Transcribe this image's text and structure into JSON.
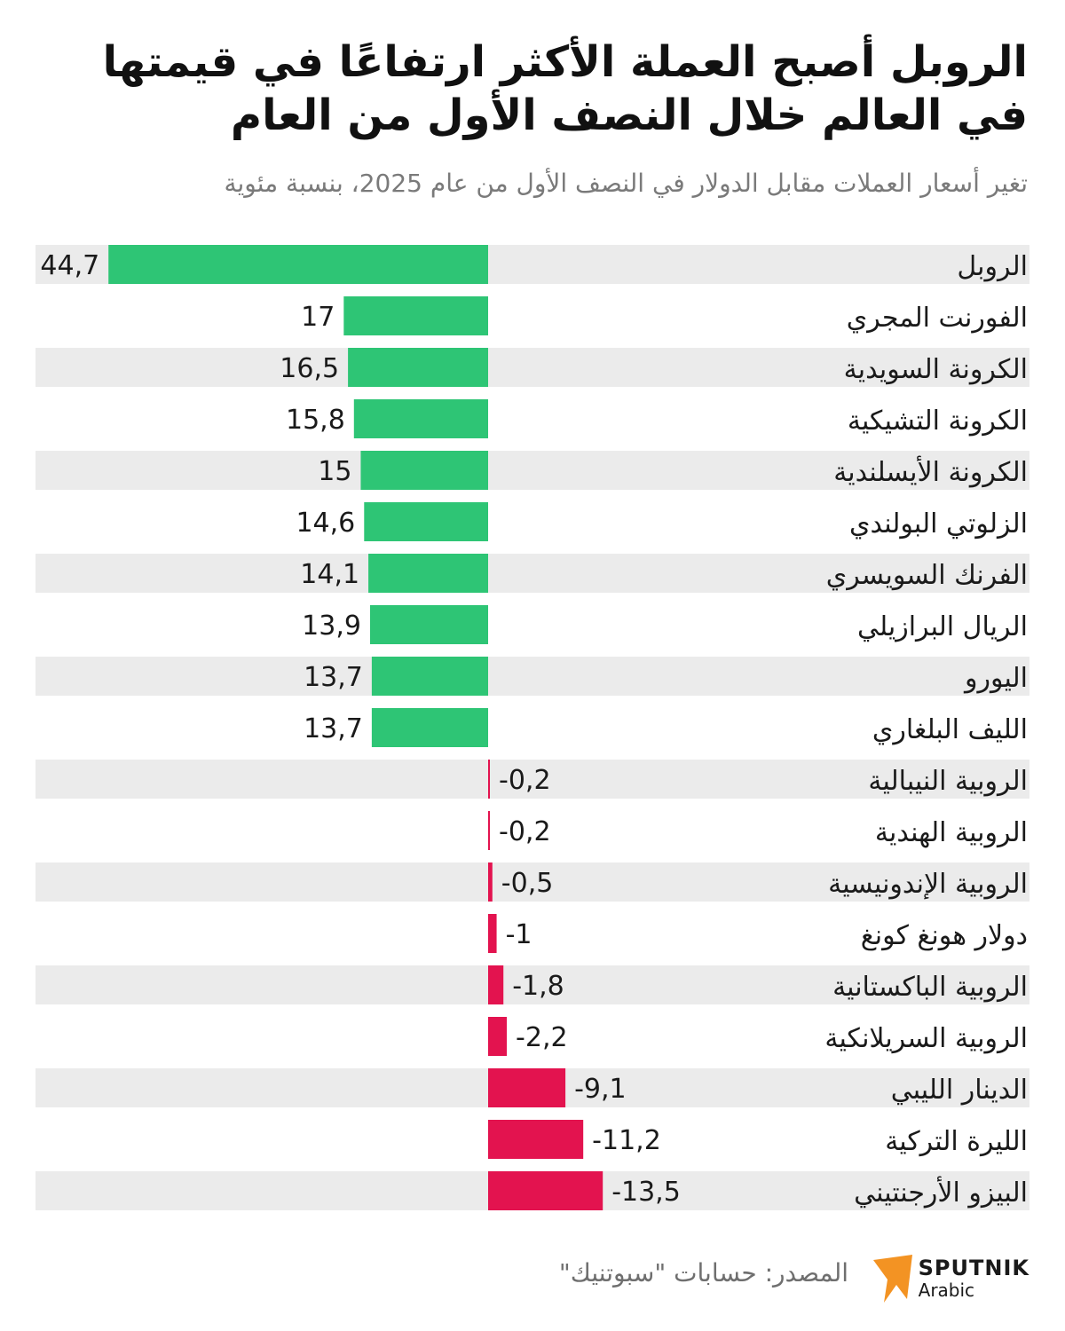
{
  "title": "الروبل أصبح العملة الأكثر ارتفاعًا في قيمتها في العالم خلال النصف الأول من العام",
  "subtitle": "تغير أسعار العملات مقابل الدولار في النصف الأول من عام 2025، بنسبة مئوية",
  "colors": {
    "positive": "#2ec575",
    "negative": "#e3134f",
    "stripe": "#ebebeb",
    "logo": "#f39323"
  },
  "chart_data": {
    "type": "bar",
    "orientation": "horizontal",
    "categories": [
      "الروبل",
      "الفورنت المجري",
      "الكرونة  السويدية",
      "الكرونة التشيكية",
      "الكرونة  الأيسلندية",
      "الزلوتي البولندي",
      "الفرنك السويسري",
      "الريال البرازيلي",
      "اليورو",
      "الليف البلغاري",
      "الروبية النيبالية",
      "الروبية الهندية",
      "الروبية الإندونيسية",
      "دولار هونغ كونغ",
      "الروبية الباكستانية",
      "الروبية السريلانكية",
      "الدينار الليبي",
      "الليرة التركية",
      "البيزو الأرجنتيني"
    ],
    "values": [
      44.7,
      17,
      16.5,
      15.8,
      15,
      14.6,
      14.1,
      13.9,
      13.7,
      13.7,
      -0.2,
      -0.2,
      -0.5,
      -1,
      -1.8,
      -2.2,
      -9.1,
      -11.2,
      -13.5
    ],
    "value_labels": [
      "44,7",
      "17",
      "16,5",
      "15,8",
      "15",
      "14,6",
      "14,1",
      "13,9",
      "13,7",
      "13,7",
      "-0,2",
      "-0,2",
      "-0,5",
      "-1",
      "-1,8",
      "-2,2",
      "-9,1",
      "-11,2",
      "-13,5"
    ],
    "grid": false,
    "legend": "none"
  },
  "footer": {
    "source": "المصدر: حسابات \"سبوتنيك\"",
    "brand": "SPUTNIK",
    "brand_sub": "Arabic"
  }
}
